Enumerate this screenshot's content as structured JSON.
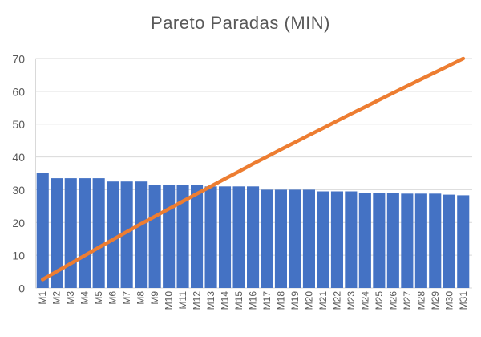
{
  "colors": {
    "bar": "#4472C4",
    "line": "#ED7D31",
    "grid": "#D9D9D9",
    "axis_text": "#595959",
    "title_text": "#595959",
    "background": "#FFFFFF"
  },
  "chart_data": {
    "type": "pareto (bar + cumulative line)",
    "title": "Pareto Paradas (MIN)",
    "categories": [
      "M1",
      "M2",
      "M3",
      "M4",
      "M5",
      "M6",
      "M7",
      "M8",
      "M9",
      "M10",
      "M11",
      "M12",
      "M13",
      "M14",
      "M15",
      "M16",
      "M17",
      "M18",
      "M19",
      "M20",
      "M21",
      "M22",
      "M23",
      "M24",
      "M25",
      "M26",
      "M27",
      "M28",
      "M29",
      "M30",
      "M31"
    ],
    "bar_values": [
      35,
      33.5,
      33.5,
      33.5,
      33.5,
      32.5,
      32.5,
      32.5,
      31.5,
      31.5,
      31.5,
      31.5,
      31,
      31,
      31,
      31,
      30,
      30,
      30,
      30,
      29.5,
      29.5,
      29.5,
      29,
      29,
      29,
      28.8,
      28.8,
      28.8,
      28.5,
      28.3
    ],
    "line_cumulative_percent": [
      3.7,
      7.2,
      10.7,
      14.2,
      17.7,
      21.1,
      24.5,
      27.9,
      31.2,
      34.5,
      37.8,
      41.1,
      44.3,
      47.6,
      50.8,
      54.1,
      57.2,
      60.4,
      63.5,
      66.6,
      69.7,
      72.8,
      75.9,
      78.9,
      82.0,
      85.0,
      88.0,
      91.0,
      94.0,
      97.0,
      100.0
    ],
    "yticks": [
      0,
      10,
      20,
      30,
      40,
      50,
      60,
      70
    ],
    "ylim": [
      0,
      70
    ],
    "secondary_axis_for_line": {
      "min": 0,
      "max": 100,
      "visible": false
    },
    "xlabel": "",
    "ylabel": "",
    "grid": true,
    "legend": "none",
    "x_label_rotation_degrees": 90
  }
}
